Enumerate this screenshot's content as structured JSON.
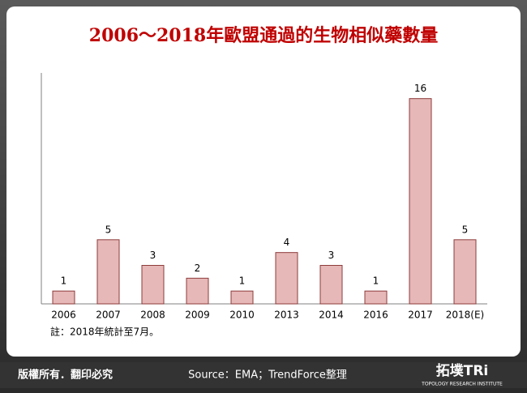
{
  "chart_data": {
    "type": "bar",
    "title": "2006～2018年歐盟通過的生物相似藥數量",
    "categories": [
      "2006",
      "2007",
      "2008",
      "2009",
      "2010",
      "2013",
      "2014",
      "2016",
      "2017",
      "2018(E)"
    ],
    "values": [
      1,
      5,
      3,
      2,
      1,
      4,
      3,
      1,
      16,
      5
    ],
    "color": "#e6b8b7",
    "edge_color": "#8e3b3b",
    "ylim": [
      0,
      18
    ],
    "note": "註：2018年統計至7月。"
  },
  "footer": {
    "copyright": "版權所有．翻印必究",
    "source": "Source：EMA；TrendForce整理",
    "logo": "拓墣TRi",
    "logo_subtitle": "TOPOLOGY RESEARCH INSTITUTE"
  }
}
